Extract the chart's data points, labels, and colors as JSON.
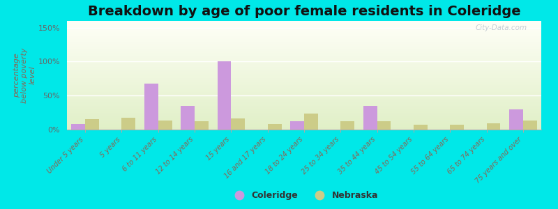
{
  "title": "Breakdown by age of poor female residents in Coleridge",
  "ylabel": "percentage\nbelow poverty\nlevel",
  "categories": [
    "Under 5 years",
    "5 years",
    "6 to 11 years",
    "12 to 14 years",
    "15 years",
    "16 and 17 years",
    "18 to 24 years",
    "25 to 34 years",
    "35 to 44 years",
    "45 to 54 years",
    "55 to 64 years",
    "65 to 74 years",
    "75 years and over"
  ],
  "coleridge": [
    8,
    0,
    68,
    35,
    100,
    0,
    12,
    0,
    35,
    0,
    0,
    0,
    30
  ],
  "nebraska": [
    15,
    17,
    13,
    12,
    16,
    8,
    24,
    12,
    12,
    7,
    7,
    9,
    13
  ],
  "coleridge_color": "#cc99dd",
  "nebraska_color": "#cccc88",
  "yticks": [
    0,
    50,
    100,
    150
  ],
  "ytick_labels": [
    "0%",
    "50%",
    "100%",
    "150%"
  ],
  "ylim": [
    0,
    160
  ],
  "legend_coleridge": "Coleridge",
  "legend_nebraska": "Nebraska",
  "title_fontsize": 14,
  "outer_bg": "#00e8e8",
  "bar_width": 0.38,
  "watermark": "City-Data.com",
  "tick_color": "#886655",
  "ylabel_color": "#886655"
}
